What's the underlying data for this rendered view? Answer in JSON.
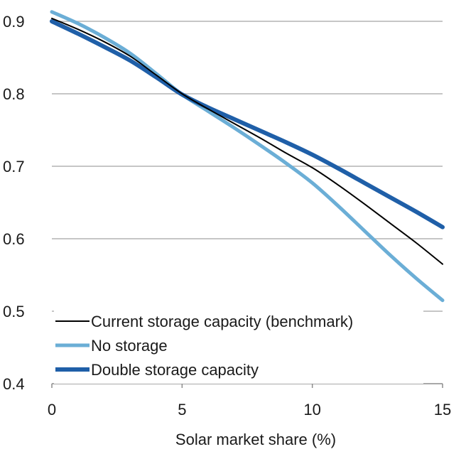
{
  "chart_data": {
    "type": "line",
    "title": "",
    "xlabel": "Solar market share (%)",
    "ylabel": "",
    "xlim": [
      0,
      15
    ],
    "ylim": [
      0.4,
      0.9
    ],
    "x_ticks": [
      0,
      5,
      10,
      15
    ],
    "y_ticks": [
      0.4,
      0.5,
      0.6,
      0.7,
      0.8,
      0.9
    ],
    "x_tick_labels": [
      "0",
      "5",
      "10",
      "15"
    ],
    "y_tick_labels": [
      "0.4",
      "0.5",
      "0.6",
      "0.7",
      "0.8",
      "0.9"
    ],
    "grid": "horizontal",
    "legend_position": "bottom-left",
    "series": [
      {
        "name": "Current storage capacity (benchmark)",
        "color": "#000000",
        "style": "thin",
        "x": [
          0,
          1,
          2,
          3,
          4,
          5,
          6,
          7,
          8,
          9,
          10,
          11,
          12,
          13,
          14,
          15
        ],
        "y": [
          0.904,
          0.889,
          0.872,
          0.852,
          0.826,
          0.8,
          0.779,
          0.759,
          0.739,
          0.718,
          0.698,
          0.674,
          0.648,
          0.621,
          0.594,
          0.565
        ]
      },
      {
        "name": "No storage",
        "color": "#6BAED6",
        "style": "medium",
        "x": [
          0,
          1,
          2,
          3,
          4,
          5,
          6,
          7,
          8,
          9,
          10,
          11,
          12,
          13,
          14,
          15
        ],
        "y": [
          0.913,
          0.897,
          0.878,
          0.856,
          0.828,
          0.799,
          0.776,
          0.753,
          0.729,
          0.704,
          0.677,
          0.645,
          0.611,
          0.577,
          0.545,
          0.515
        ]
      },
      {
        "name": "Double storage capacity",
        "color": "#1F5FA8",
        "style": "thick",
        "x": [
          0,
          1,
          2,
          3,
          4,
          5,
          6,
          7,
          8,
          9,
          10,
          11,
          12,
          13,
          14,
          15
        ],
        "y": [
          0.9,
          0.883,
          0.865,
          0.846,
          0.823,
          0.799,
          0.781,
          0.765,
          0.749,
          0.733,
          0.716,
          0.697,
          0.677,
          0.657,
          0.637,
          0.616
        ]
      }
    ]
  }
}
